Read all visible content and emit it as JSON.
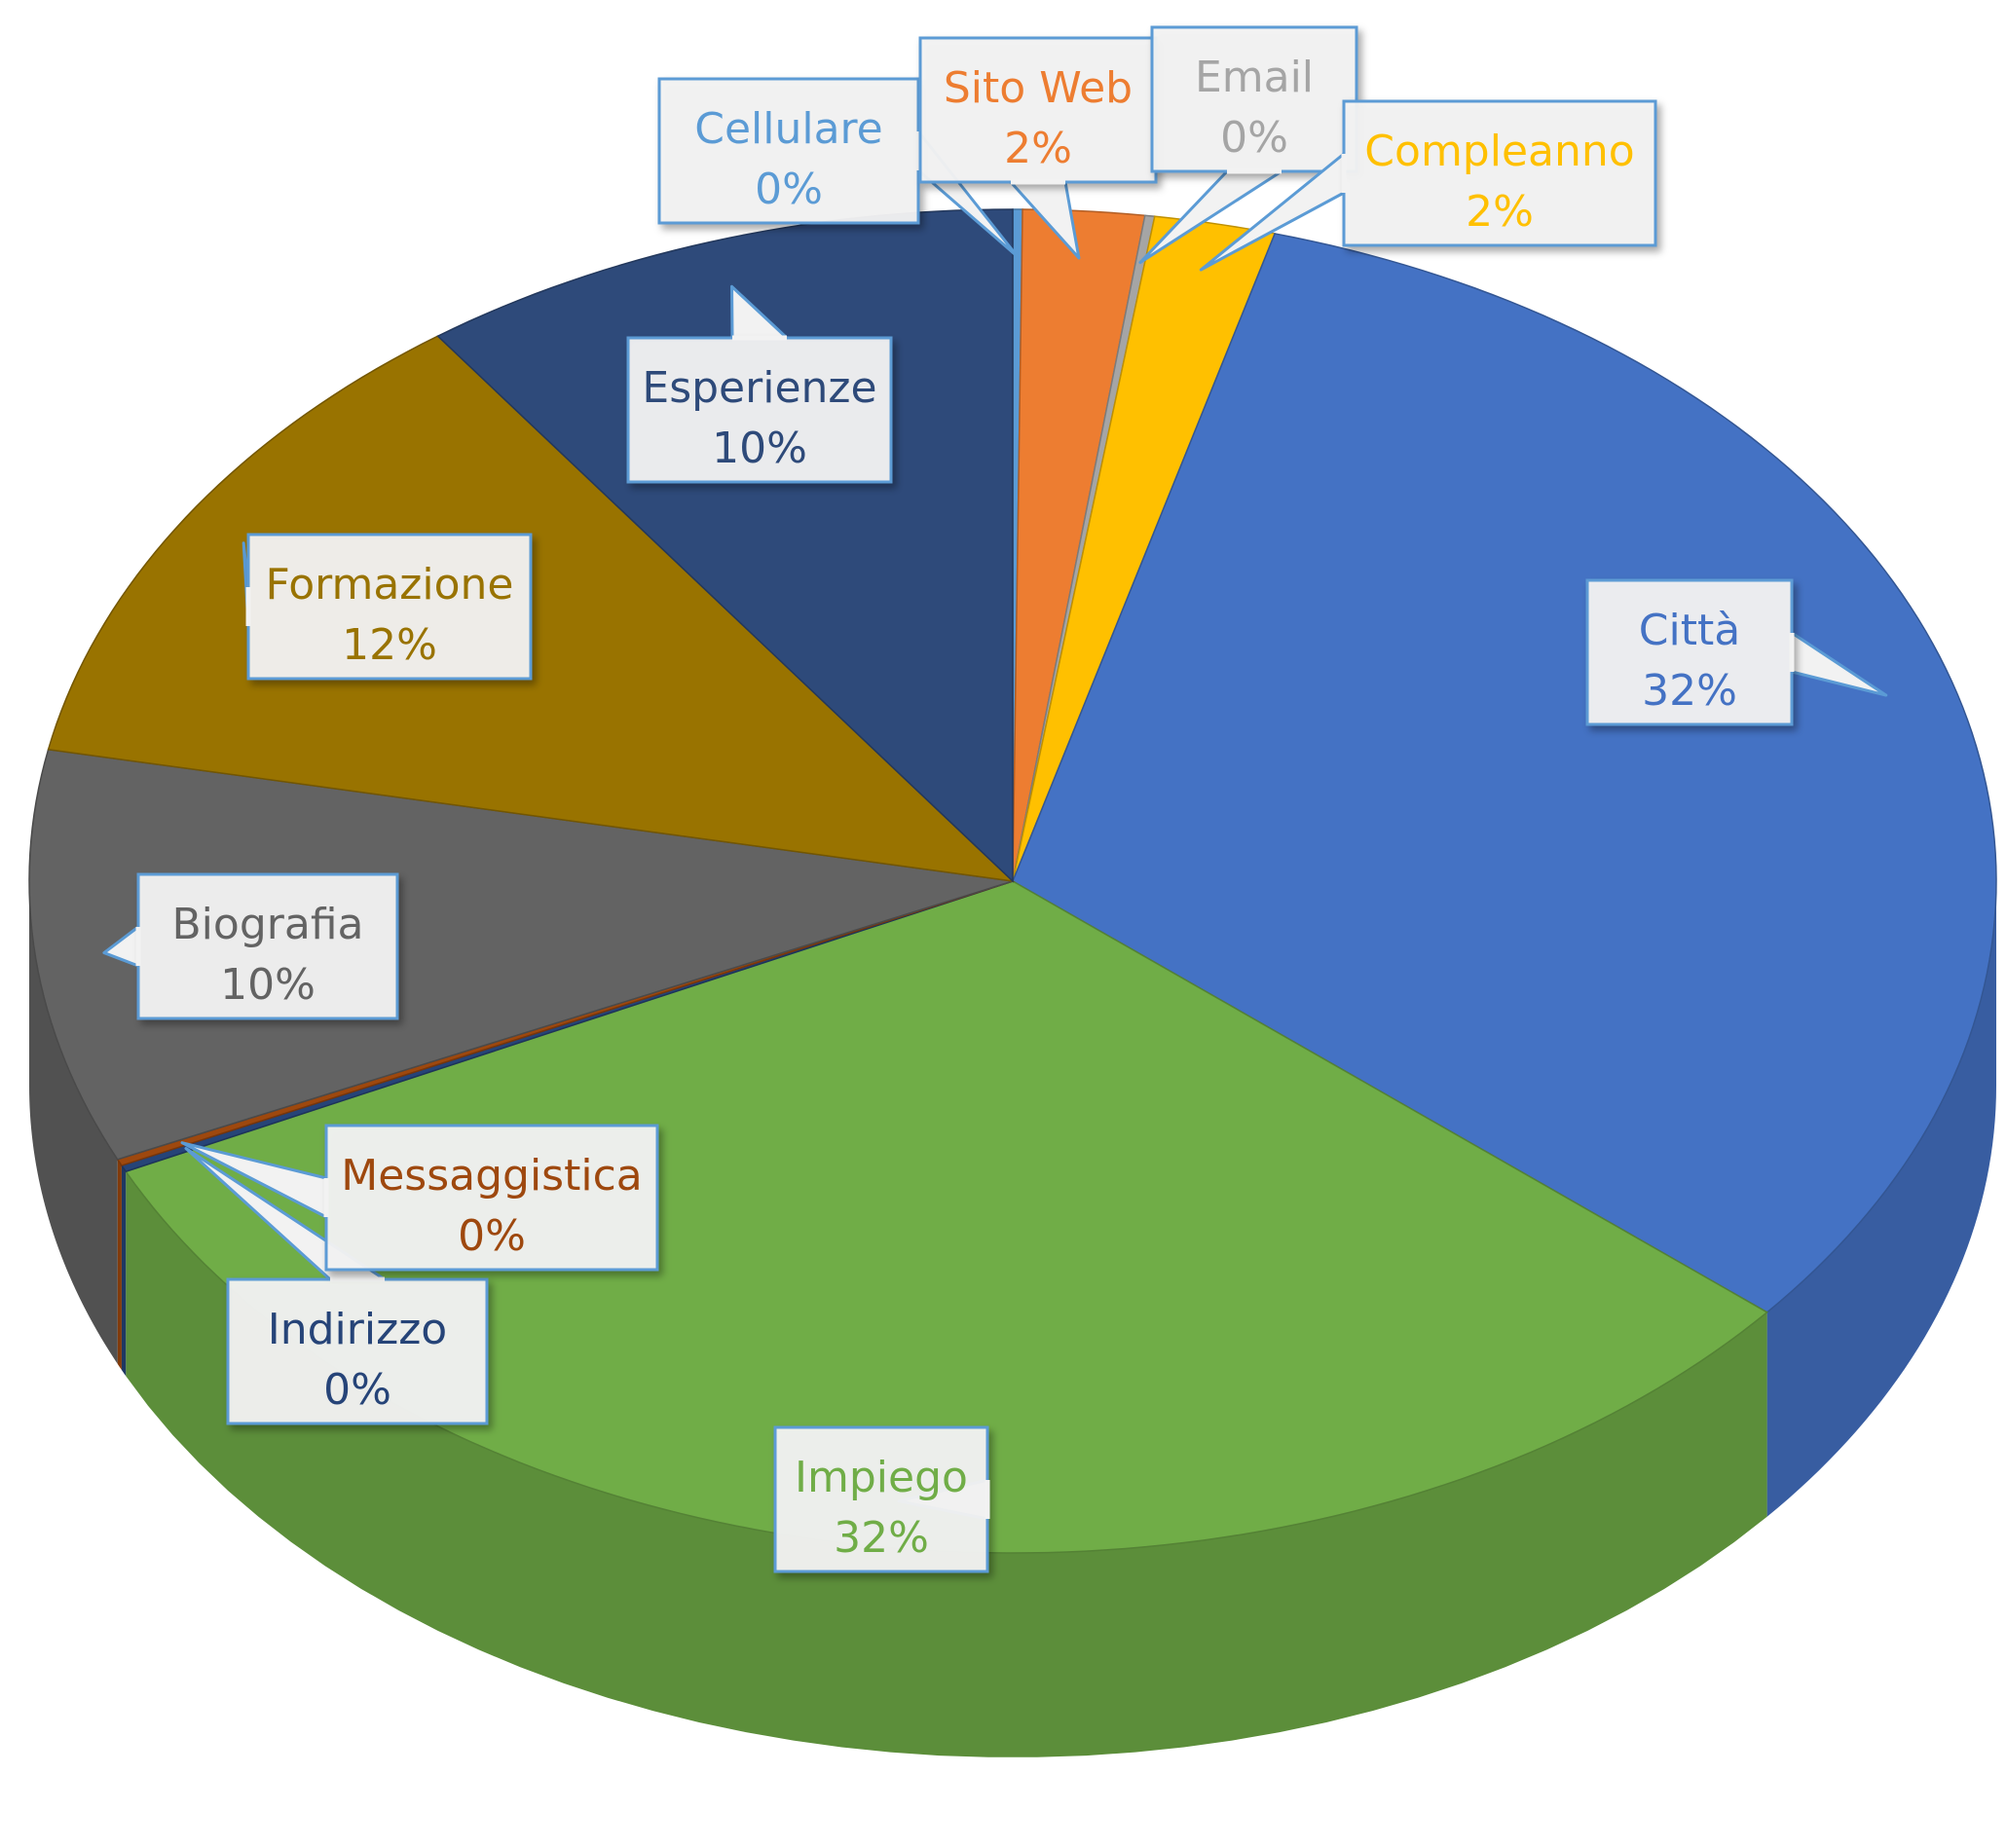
{
  "chart_data": {
    "type": "pie",
    "title": "",
    "legend": "none",
    "slices": [
      {
        "name": "Cellulare",
        "value": 0,
        "label": "0%",
        "color": "#5b9bd5"
      },
      {
        "name": "Sito Web",
        "value": 2,
        "label": "2%",
        "color": "#ed7d31"
      },
      {
        "name": "Email",
        "value": 0,
        "label": "0%",
        "color": "#a5a5a5"
      },
      {
        "name": "Compleanno",
        "value": 2,
        "label": "2%",
        "color": "#ffc000"
      },
      {
        "name": "Città",
        "value": 32,
        "label": "32%",
        "color": "#4472c4"
      },
      {
        "name": "Impiego",
        "value": 32,
        "label": "32%",
        "color": "#70ad47"
      },
      {
        "name": "Indirizzo",
        "value": 0,
        "label": "0%",
        "color": "#264478"
      },
      {
        "name": "Messaggistica",
        "value": 0,
        "label": "0%",
        "color": "#9e480e"
      },
      {
        "name": "Biografia",
        "value": 10,
        "label": "10%",
        "color": "#636363"
      },
      {
        "name": "Formazione",
        "value": 12,
        "label": "12%",
        "color": "#997300"
      },
      {
        "name": "Esperienze",
        "value": 10,
        "label": "10%",
        "color": "#2e4a7a"
      }
    ]
  }
}
